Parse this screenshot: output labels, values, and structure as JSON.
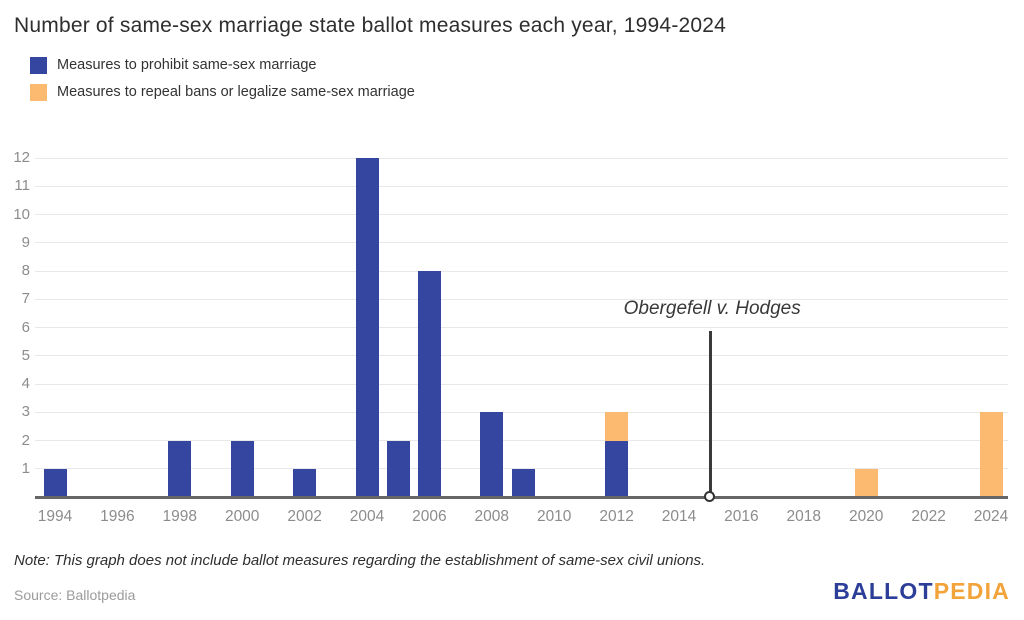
{
  "title": "Number of same-sex marriage state ballot measures each year, 1994-2024",
  "note": "Note: This graph does not include ballot measures regarding the establishment of same-sex civil unions.",
  "source": "Source: Ballotpedia",
  "logo": {
    "part1": "BALLOT",
    "part2": "PEDIA"
  },
  "colors": {
    "prohibit": "#3546a0",
    "repeal": "#fcba70",
    "gridline": "#e8e8e8",
    "baseline": "#666666",
    "axis_text": "#8c8c8c",
    "annotation": "#3a3a3a"
  },
  "chart_data": {
    "type": "bar",
    "stacked": true,
    "title": "Number of same-sex marriage state ballot measures each year, 1994-2024",
    "xlabel": "",
    "ylabel": "",
    "ylim": [
      0,
      12
    ],
    "yticks": [
      1,
      2,
      3,
      4,
      5,
      6,
      7,
      8,
      9,
      10,
      11,
      12
    ],
    "xticks": [
      1994,
      1996,
      1998,
      2000,
      2002,
      2004,
      2006,
      2008,
      2010,
      2012,
      2014,
      2016,
      2018,
      2020,
      2022,
      2024
    ],
    "grid": true,
    "legend_position": "top-left",
    "x": [
      1994,
      1995,
      1996,
      1997,
      1998,
      1999,
      2000,
      2001,
      2002,
      2003,
      2004,
      2005,
      2006,
      2007,
      2008,
      2009,
      2010,
      2011,
      2012,
      2013,
      2014,
      2015,
      2016,
      2017,
      2018,
      2019,
      2020,
      2021,
      2022,
      2023,
      2024
    ],
    "series": [
      {
        "name": "Measures to prohibit same-sex marriage",
        "color": "#3546a0",
        "values": [
          1,
          0,
          0,
          0,
          2,
          0,
          2,
          0,
          1,
          0,
          12,
          2,
          8,
          0,
          3,
          1,
          0,
          0,
          2,
          0,
          0,
          0,
          0,
          0,
          0,
          0,
          0,
          0,
          0,
          0,
          0
        ]
      },
      {
        "name": "Measures to repeal bans or legalize same-sex marriage",
        "color": "#fcba70",
        "values": [
          0,
          0,
          0,
          0,
          0,
          0,
          0,
          0,
          0,
          0,
          0,
          0,
          0,
          0,
          0,
          0,
          0,
          0,
          1,
          0,
          0,
          0,
          0,
          0,
          0,
          0,
          1,
          0,
          0,
          0,
          3
        ]
      }
    ],
    "annotation": {
      "text": "Obergefell v. Hodges",
      "x": 2015
    }
  }
}
